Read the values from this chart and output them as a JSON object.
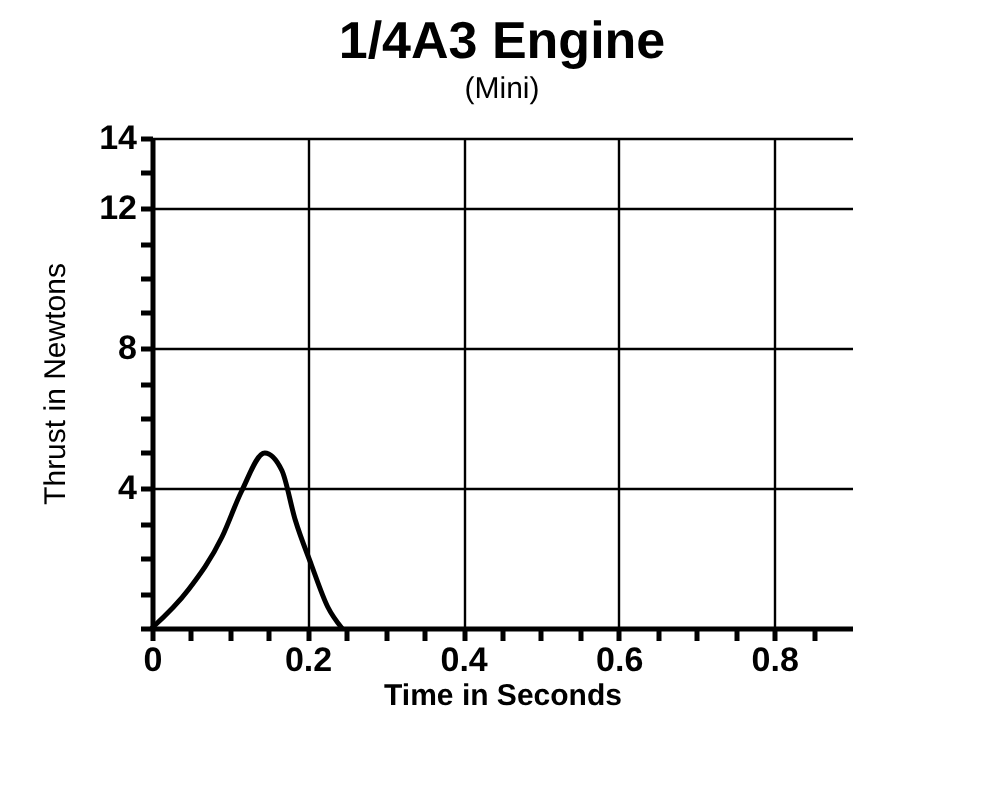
{
  "chart_data": {
    "type": "line",
    "title": "1/4A3 Engine",
    "subtitle": "(Mini)",
    "xlabel": "Time in Seconds",
    "ylabel": "Thrust in Newtons",
    "x": [
      0,
      0.047,
      0.09,
      0.115,
      0.145,
      0.167,
      0.184,
      0.205,
      0.226,
      0.244
    ],
    "series": [
      {
        "color": "#000000",
        "values": [
          0,
          1.1,
          2.6,
          3.9,
          5.0,
          4.5,
          3.1,
          1.8,
          0.6,
          0
        ]
      }
    ],
    "xlim": [
      0,
      0.9
    ],
    "ylim": [
      0,
      14
    ],
    "xticks": [
      0,
      {
        "value": 0.05,
        "label": null
      },
      {
        "value": 0.1,
        "label": null
      },
      {
        "value": 0.15,
        "label": null
      },
      0.2,
      {
        "value": 0.25,
        "label": null
      },
      {
        "value": 0.3,
        "label": null
      },
      {
        "value": 0.35,
        "label": null
      },
      0.4,
      {
        "value": 0.45,
        "label": null
      },
      {
        "value": 0.5,
        "label": null
      },
      {
        "value": 0.55,
        "label": null
      },
      0.6,
      {
        "value": 0.65,
        "label": null
      },
      {
        "value": 0.7,
        "label": null
      },
      {
        "value": 0.75,
        "label": null
      },
      0.8,
      {
        "value": 0.85,
        "label": null
      }
    ],
    "yticks": [
      {
        "value": 0,
        "label": null
      },
      {
        "value": 1,
        "label": null
      },
      {
        "value": 2,
        "label": null
      },
      {
        "value": 3,
        "label": null
      },
      4,
      {
        "value": 5,
        "label": null
      },
      {
        "value": 6,
        "label": null
      },
      {
        "value": 7,
        "label": null
      },
      8,
      {
        "value": 9,
        "label": null
      },
      {
        "value": 10,
        "label": null
      },
      {
        "value": 11,
        "label": null
      },
      12,
      {
        "value": 13,
        "label": null
      },
      14
    ],
    "grid": true,
    "marker": "none",
    "line_style": "solid"
  }
}
